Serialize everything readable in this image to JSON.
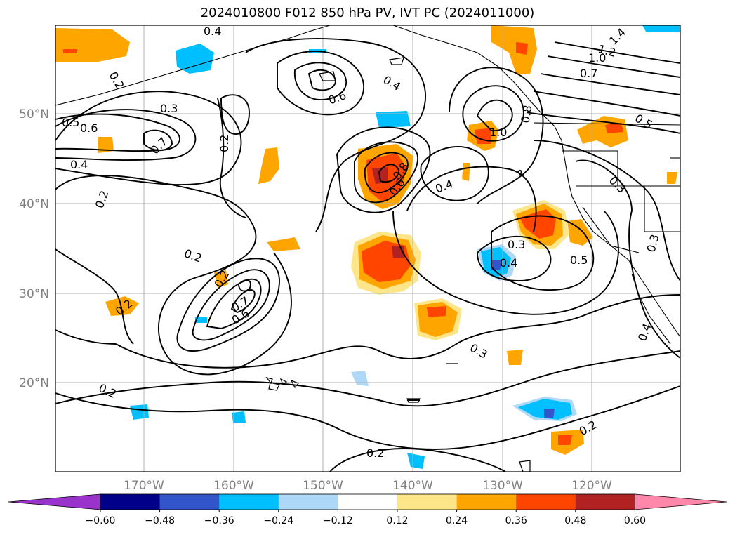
{
  "title": "2024010800 F012 850 hPa PV, IVT PC (2024011000)",
  "lon_labels": [
    "170°W",
    "160°W",
    "150°W",
    "140°W",
    "130°W",
    "120°W"
  ],
  "lat_labels": [
    "50°N",
    "40°N",
    "30°N",
    "20°N"
  ],
  "colorbar": {
    "ticks": [
      "−0.60",
      "−0.48",
      "−0.36",
      "−0.24",
      "−0.12",
      "0.12",
      "0.24",
      "0.36",
      "0.48",
      "0.60"
    ],
    "colors": [
      "#9933cc",
      "#00008b",
      "#3355cc",
      "#00bfff",
      "#add8f8",
      "#ffffff",
      "#fde68a",
      "#ffa500",
      "#ff4500",
      "#b22222",
      "#ff88aa"
    ]
  },
  "contour_labels": [
    "0.4",
    "0.2",
    "0.3",
    "0.5",
    "0.6",
    "0.7",
    "0.4",
    "0.2",
    "0.2",
    "0.6",
    "0.4",
    "0.8",
    "0.6",
    "0.4",
    "1.0",
    "0.8",
    "1.4",
    "1.2",
    "1.0",
    "0.7",
    "0.5",
    "0.3",
    "0.3",
    "0.4",
    "0.3",
    "0.5",
    "0.2",
    "0.7",
    "0.6",
    "0.2",
    "0.2",
    "0.4",
    "0.3",
    "0.2",
    "0.2",
    "0.2"
  ]
}
